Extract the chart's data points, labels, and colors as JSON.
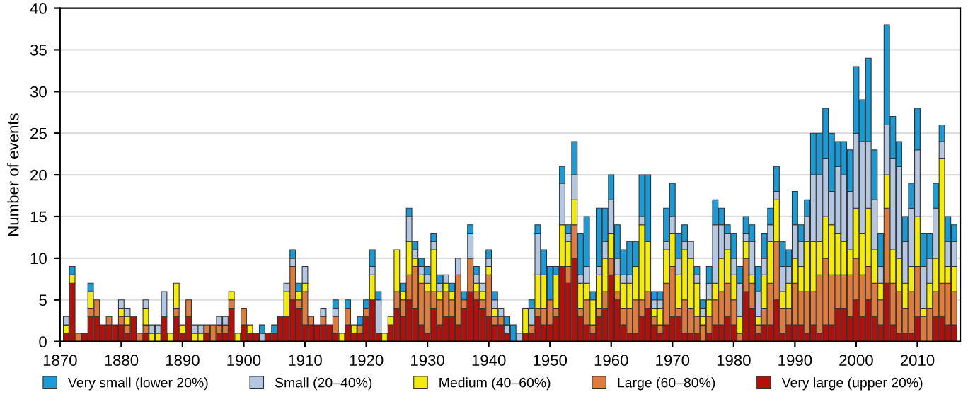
{
  "chart_data": {
    "type": "bar",
    "stacked": true,
    "ylabel": "Number of events",
    "x": [
      1871,
      1872,
      1873,
      1874,
      1875,
      1876,
      1877,
      1878,
      1879,
      1880,
      1881,
      1882,
      1883,
      1884,
      1885,
      1886,
      1887,
      1888,
      1889,
      1890,
      1891,
      1892,
      1893,
      1894,
      1895,
      1896,
      1897,
      1898,
      1899,
      1900,
      1901,
      1902,
      1903,
      1904,
      1905,
      1906,
      1907,
      1908,
      1909,
      1910,
      1911,
      1912,
      1913,
      1914,
      1915,
      1916,
      1917,
      1918,
      1919,
      1920,
      1921,
      1922,
      1923,
      1924,
      1925,
      1926,
      1927,
      1928,
      1929,
      1930,
      1931,
      1932,
      1933,
      1934,
      1935,
      1936,
      1937,
      1938,
      1939,
      1940,
      1941,
      1942,
      1943,
      1944,
      1945,
      1946,
      1947,
      1948,
      1949,
      1950,
      1951,
      1952,
      1953,
      1954,
      1955,
      1956,
      1957,
      1958,
      1959,
      1960,
      1961,
      1962,
      1963,
      1964,
      1965,
      1966,
      1967,
      1968,
      1969,
      1970,
      1971,
      1972,
      1973,
      1974,
      1975,
      1976,
      1977,
      1978,
      1979,
      1980,
      1981,
      1982,
      1983,
      1984,
      1985,
      1986,
      1987,
      1988,
      1989,
      1990,
      1991,
      1992,
      1993,
      1994,
      1995,
      1996,
      1997,
      1998,
      1999,
      2000,
      2001,
      2002,
      2003,
      2004,
      2005,
      2006,
      2007,
      2008,
      2009,
      2010,
      2011,
      2012,
      2013,
      2014,
      2015,
      2016
    ],
    "series": [
      {
        "name": "Very large (upper 20%)",
        "color": "#b3100c",
        "values": [
          1,
          7,
          0,
          1,
          3,
          3,
          2,
          2,
          2,
          2,
          1,
          3,
          0,
          1,
          0,
          0,
          3,
          0,
          3,
          1,
          3,
          0,
          0,
          1,
          0,
          1,
          1,
          4,
          0,
          2,
          1,
          1,
          0,
          1,
          1,
          3,
          3,
          5,
          4,
          2,
          2,
          2,
          2,
          2,
          1,
          0,
          2,
          1,
          1,
          3,
          5,
          1,
          0,
          2,
          4,
          3,
          5,
          4,
          2,
          1,
          4,
          2,
          3,
          3,
          2,
          4,
          6,
          5,
          4,
          3,
          2,
          2,
          1,
          0,
          0,
          1,
          1,
          3,
          2,
          2,
          3,
          9,
          7,
          10,
          3,
          2,
          1,
          3,
          4,
          8,
          5,
          2,
          1,
          1,
          3,
          4,
          2,
          1,
          2,
          3,
          3,
          1,
          1,
          1,
          0,
          1,
          2,
          2,
          3,
          2,
          0,
          6,
          4,
          1,
          2,
          2,
          5,
          1,
          2,
          2,
          2,
          1,
          2,
          1,
          2,
          2,
          4,
          4,
          3,
          5,
          3,
          5,
          3,
          2,
          7,
          2,
          1,
          1,
          1,
          3,
          0,
          0,
          3,
          3,
          2,
          2
        ]
      },
      {
        "name": "Large (60–80%)",
        "color": "#e07b3e",
        "values": [
          0,
          0,
          1,
          0,
          1,
          2,
          0,
          1,
          0,
          1,
          1,
          0,
          1,
          1,
          0,
          0,
          0,
          0,
          1,
          0,
          2,
          0,
          0,
          1,
          2,
          1,
          1,
          1,
          0,
          2,
          0,
          0,
          0,
          0,
          0,
          0,
          0,
          4,
          1,
          4,
          1,
          0,
          1,
          0,
          2,
          0,
          2,
          0,
          1,
          1,
          0,
          0,
          0,
          0,
          2,
          2,
          3,
          5,
          5,
          5,
          2,
          3,
          3,
          2,
          6,
          1,
          4,
          1,
          1,
          5,
          1,
          1,
          0,
          0,
          0,
          0,
          1,
          1,
          2,
          3,
          1,
          0,
          2,
          4,
          1,
          3,
          1,
          1,
          2,
          2,
          1,
          2,
          3,
          4,
          2,
          2,
          1,
          1,
          5,
          6,
          1,
          4,
          3,
          2,
          2,
          2,
          3,
          4,
          4,
          3,
          1,
          4,
          3,
          1,
          2,
          5,
          7,
          3,
          2,
          5,
          4,
          5,
          4,
          7,
          8,
          6,
          4,
          4,
          5,
          5,
          5,
          4,
          4,
          3,
          9,
          5,
          5,
          3,
          5,
          6,
          3,
          4,
          3,
          4,
          5,
          4
        ]
      },
      {
        "name": "Medium (40–60%)",
        "color": "#f5eb0a",
        "values": [
          1,
          1,
          0,
          0,
          2,
          0,
          0,
          0,
          0,
          1,
          1,
          0,
          0,
          2,
          1,
          1,
          0,
          1,
          3,
          1,
          0,
          1,
          1,
          0,
          0,
          0,
          0,
          1,
          1,
          0,
          1,
          0,
          0,
          0,
          0,
          0,
          3,
          0,
          1,
          1,
          0,
          0,
          0,
          0,
          0,
          1,
          0,
          1,
          0,
          0,
          3,
          0,
          1,
          1,
          5,
          1,
          4,
          1,
          1,
          1,
          5,
          1,
          1,
          1,
          0,
          0,
          0,
          1,
          1,
          1,
          1,
          0,
          0,
          0,
          0,
          3,
          0,
          4,
          4,
          0,
          4,
          5,
          3,
          3,
          3,
          2,
          3,
          4,
          4,
          3,
          2,
          3,
          3,
          4,
          9,
          6,
          1,
          2,
          4,
          4,
          4,
          6,
          6,
          4,
          1,
          2,
          2,
          4,
          4,
          3,
          2,
          2,
          1,
          1,
          4,
          5,
          5,
          2,
          3,
          3,
          3,
          6,
          6,
          4,
          5,
          6,
          5,
          4,
          3,
          6,
          5,
          7,
          4,
          2,
          4,
          4,
          4,
          3,
          3,
          6,
          1,
          3,
          4,
          15,
          2,
          3
        ]
      },
      {
        "name": "Small (20–40%)",
        "color": "#b4c7e2",
        "values": [
          1,
          0,
          0,
          0,
          0,
          0,
          0,
          0,
          0,
          1,
          1,
          0,
          0,
          1,
          1,
          1,
          3,
          0,
          0,
          0,
          0,
          1,
          1,
          0,
          0,
          1,
          1,
          0,
          0,
          0,
          0,
          0,
          1,
          0,
          0,
          0,
          1,
          1,
          0,
          2,
          0,
          0,
          1,
          0,
          1,
          0,
          0,
          0,
          0,
          0,
          1,
          4,
          0,
          0,
          0,
          0,
          3,
          1,
          1,
          1,
          1,
          1,
          1,
          0,
          2,
          0,
          3,
          1,
          1,
          1,
          1,
          1,
          1,
          0,
          1,
          0,
          2,
          5,
          0,
          0,
          0,
          5,
          1,
          3,
          1,
          2,
          0,
          1,
          2,
          4,
          2,
          1,
          1,
          0,
          1,
          0,
          1,
          1,
          1,
          2,
          2,
          1,
          2,
          1,
          1,
          2,
          7,
          4,
          2,
          2,
          4,
          1,
          4,
          3,
          2,
          2,
          1,
          3,
          2,
          4,
          3,
          3,
          8,
          8,
          7,
          4,
          8,
          8,
          7,
          9,
          11,
          8,
          6,
          2,
          6,
          11,
          11,
          5,
          7,
          8,
          5,
          3,
          6,
          2,
          3,
          3
        ]
      },
      {
        "name": "Very small (lower 20%)",
        "color": "#1a9ad6",
        "values": [
          0,
          1,
          0,
          0,
          1,
          0,
          0,
          0,
          0,
          0,
          0,
          0,
          0,
          0,
          0,
          0,
          0,
          0,
          0,
          0,
          0,
          0,
          0,
          0,
          0,
          0,
          0,
          0,
          0,
          0,
          0,
          0,
          1,
          0,
          1,
          0,
          0,
          1,
          1,
          0,
          0,
          0,
          0,
          0,
          1,
          0,
          1,
          0,
          1,
          1,
          2,
          1,
          0,
          0,
          0,
          1,
          1,
          1,
          1,
          1,
          1,
          1,
          0,
          1,
          0,
          1,
          1,
          1,
          0,
          1,
          1,
          0,
          1,
          2,
          0,
          0,
          1,
          1,
          3,
          4,
          1,
          2,
          1,
          4,
          5,
          6,
          1,
          7,
          4,
          3,
          4,
          3,
          4,
          3,
          5,
          8,
          1,
          1,
          4,
          4,
          3,
          2,
          0,
          1,
          1,
          2,
          3,
          2,
          1,
          3,
          2,
          2,
          2,
          3,
          3,
          2,
          3,
          3,
          2,
          4,
          2,
          2,
          5,
          5,
          6,
          7,
          3,
          4,
          5,
          8,
          5,
          10,
          6,
          4,
          12,
          5,
          3,
          3,
          3,
          5,
          4,
          3,
          3,
          2,
          3,
          2
        ]
      }
    ],
    "xlim": [
      1870,
      2017
    ],
    "xticks": [
      1870,
      1880,
      1890,
      1900,
      1910,
      1920,
      1930,
      1940,
      1950,
      1960,
      1970,
      1980,
      1990,
      2000,
      2010
    ],
    "ylim": [
      0,
      40
    ],
    "yticks": [
      0,
      5,
      10,
      15,
      20,
      25,
      30,
      35,
      40
    ],
    "grid": "y",
    "legend": "bottom"
  }
}
